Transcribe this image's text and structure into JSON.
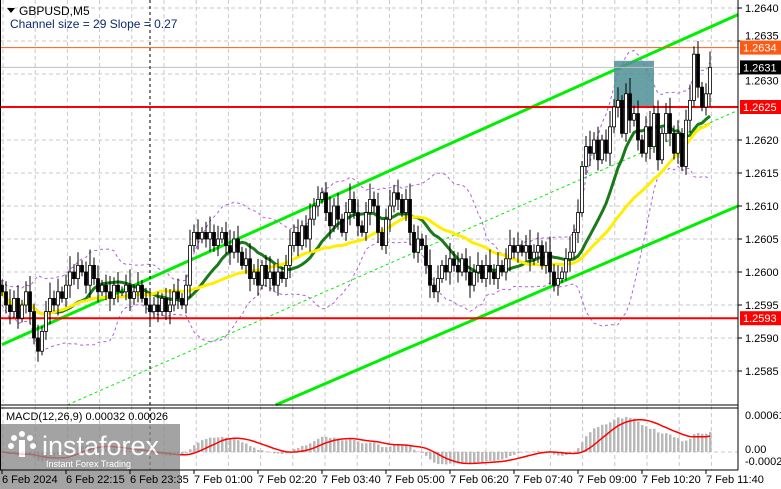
{
  "window": {
    "symbol_title": "GBPUSD,M5",
    "indicator_text": "Channel size = 29 Slope = 0.27"
  },
  "watermark": {
    "brand": "instaforex",
    "tagline": "Instant Forex Trading"
  },
  "colors": {
    "channel": "#00ee00",
    "fast_ma": "#1a7a1a",
    "slow_ma": "#ffee00",
    "bands": "#b060d8",
    "support_resistance": "#ff0000",
    "level_1_2634": "#ff5a14",
    "current_price": "#000000",
    "zone": "#4f8f95",
    "macd_hist": "#b8b8b8",
    "macd_signal": "#ff0000"
  },
  "chart_data": {
    "type": "candlestick",
    "symbol": "GBPUSD",
    "timeframe": "M5",
    "ylim": [
      1.258,
      1.2642
    ],
    "y_ticks": [
      "1.2640",
      "1.2635",
      "1.2630",
      "1.2620",
      "1.2615",
      "1.2610",
      "1.2605",
      "1.2600",
      "1.2595",
      "1.2590",
      "1.2585"
    ],
    "x_ticks": [
      {
        "index": 0,
        "label": "6 Feb 2024"
      },
      {
        "index": 16,
        "label": "6 Feb 22:15"
      },
      {
        "index": 32,
        "label": "6 Feb 23:35"
      },
      {
        "index": 48,
        "label": "7 Feb 01:00"
      },
      {
        "index": 64,
        "label": "7 Feb 02:20"
      },
      {
        "index": 80,
        "label": "7 Feb 03:40"
      },
      {
        "index": 96,
        "label": "7 Feb 05:00"
      },
      {
        "index": 112,
        "label": "7 Feb 06:20"
      },
      {
        "index": 128,
        "label": "7 Feb 07:40"
      },
      {
        "index": 144,
        "label": "7 Feb 09:00"
      },
      {
        "index": 160,
        "label": "7 Feb 10:20"
      },
      {
        "index": 176,
        "label": "7 Feb 11:40"
      }
    ],
    "period_separator_index": 37,
    "closes": [
      1.2597,
      1.2595,
      1.2594,
      1.2596,
      1.2593,
      1.2595,
      1.2597,
      1.2594,
      1.259,
      1.2588,
      1.2591,
      1.2594,
      1.2596,
      1.2595,
      1.2597,
      1.2596,
      1.2598,
      1.26,
      1.2599,
      1.2601,
      1.26,
      1.2598,
      1.2601,
      1.2599,
      1.2597,
      1.2598,
      1.2597,
      1.2596,
      1.2598,
      1.2597,
      1.2597,
      1.2598,
      1.2596,
      1.2597,
      1.2598,
      1.2596,
      1.2595,
      1.2594,
      1.2595,
      1.2594,
      1.2596,
      1.2594,
      1.2595,
      1.2597,
      1.2596,
      1.2595,
      1.2598,
      1.2604,
      1.2606,
      1.2605,
      1.2606,
      1.2605,
      1.2606,
      1.2604,
      1.2605,
      1.2606,
      1.2604,
      1.2603,
      1.2605,
      1.2603,
      1.2601,
      1.2602,
      1.2599,
      1.26,
      1.2598,
      1.2601,
      1.2599,
      1.26,
      1.2598,
      1.26,
      1.2599,
      1.2601,
      1.2604,
      1.2606,
      1.2604,
      1.2607,
      1.2605,
      1.2608,
      1.261,
      1.2611,
      1.2612,
      1.2609,
      1.2607,
      1.261,
      1.2608,
      1.2606,
      1.2609,
      1.2611,
      1.2609,
      1.2607,
      1.2606,
      1.2609,
      1.2611,
      1.261,
      1.2606,
      1.2604,
      1.2608,
      1.261,
      1.2612,
      1.2611,
      1.2609,
      1.2611,
      1.2606,
      1.2603,
      1.2605,
      1.2604,
      1.2601,
      1.2598,
      1.2597,
      1.2599,
      1.2601,
      1.26,
      1.2602,
      1.2601,
      1.26,
      1.2602,
      1.26,
      1.2598,
      1.26,
      1.2601,
      1.2599,
      1.2601,
      1.26,
      1.2599,
      1.2601,
      1.26,
      1.2602,
      1.2604,
      1.2603,
      1.2604,
      1.2603,
      1.2604,
      1.2602,
      1.2603,
      1.2604,
      1.2601,
      1.2603,
      1.26,
      1.2598,
      1.2599,
      1.26,
      1.2602,
      1.2603,
      1.2606,
      1.2609,
      1.2616,
      1.2619,
      1.2618,
      1.262,
      1.2617,
      1.262,
      1.2618,
      1.2622,
      1.2625,
      1.2626,
      1.2621,
      1.2627,
      1.2623,
      1.2624,
      1.262,
      1.2618,
      1.2622,
      1.2619,
      1.2624,
      1.2617,
      1.2621,
      1.2624,
      1.2621,
      1.2618,
      1.2621,
      1.2616,
      1.2623,
      1.2626,
      1.2633,
      1.2628,
      1.2625,
      1.2627,
      1.2631
    ],
    "moving_averages": [
      {
        "type": "SMA",
        "period": 14,
        "color": "fast_ma"
      },
      {
        "type": "SMA",
        "period": 30,
        "color": "slow_ma"
      }
    ],
    "bollinger": {
      "period": 20,
      "deviations": 2
    },
    "channel": {
      "upper": [
        [
          0,
          1.2589
        ],
        [
          184,
          1.2639
        ]
      ],
      "lower": [
        [
          0,
          1.2562
        ],
        [
          184,
          1.261
        ]
      ],
      "middle_dashed": true
    },
    "horizontal_levels": [
      {
        "price": 1.2634,
        "label": "1.2634",
        "color": "level_1_2634"
      },
      {
        "price": 1.2631,
        "label": "1.2631",
        "color": "current_price",
        "kind": "bid"
      },
      {
        "price": 1.2625,
        "label": "1.2625",
        "color": "support_resistance"
      },
      {
        "price": 1.2593,
        "label": "1.2593",
        "color": "support_resistance"
      }
    ],
    "zone": {
      "from_index": 153,
      "to_index": 163,
      "price_top": 1.2632,
      "price_bottom": 1.2625
    },
    "macd": {
      "label": "MACD(12,26,9) 0.00032 0.00026",
      "params": [
        12,
        26,
        9
      ],
      "main": 0.00032,
      "signal": 0.00026,
      "y_ticks": [
        "0.00061",
        "0.00",
        "-0.00021"
      ],
      "ylim": [
        -0.00021,
        0.00061
      ]
    }
  }
}
